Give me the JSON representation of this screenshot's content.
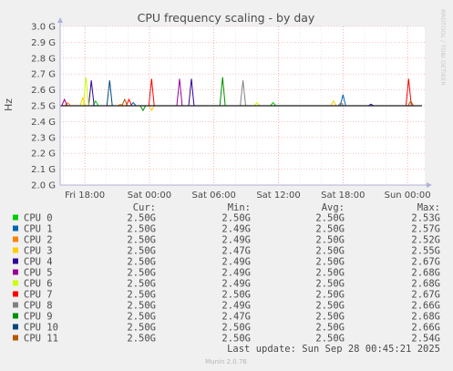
{
  "chart_data": {
    "type": "line",
    "title": "CPU frequency scaling - by day",
    "ylabel": "Hz",
    "y_ticks": [
      "3.0 G",
      "2.9 G",
      "2.8 G",
      "2.7 G",
      "2.6 G",
      "2.5 G",
      "2.4 G",
      "2.3 G",
      "2.2 G",
      "2.1 G",
      "2.0 G"
    ],
    "ylim": [
      2.0,
      3.0
    ],
    "y_unit": "GHz",
    "x_ticks": [
      "Fri 18:00",
      "Sat 00:00",
      "Sat 06:00",
      "Sat 12:00",
      "Sat 18:00",
      "Sun 00:00"
    ],
    "x_tick_hours": [
      0,
      6,
      12,
      18,
      24,
      30
    ],
    "xlim_hours": [
      -2.3,
      31.6
    ],
    "grid": true,
    "baseline": 2.5,
    "columns": [
      "Cur:",
      "Min:",
      "Avg:",
      "Max:"
    ],
    "series": [
      {
        "name": "CPU 0",
        "color": "#00cc00",
        "cur": "2.50G",
        "min": "2.50G",
        "avg": "2.50G",
        "max": "2.53G",
        "spikes": [
          [
            1.0,
            2.53
          ],
          [
            17.5,
            2.52
          ]
        ]
      },
      {
        "name": "CPU 1",
        "color": "#0066b3",
        "cur": "2.50G",
        "min": "2.49G",
        "avg": "2.50G",
        "max": "2.57G",
        "spikes": [
          [
            24.0,
            2.57
          ],
          [
            4.5,
            2.52
          ]
        ]
      },
      {
        "name": "CPU 2",
        "color": "#ff8000",
        "cur": "2.50G",
        "min": "2.49G",
        "avg": "2.50G",
        "max": "2.52G",
        "spikes": [
          [
            -1.6,
            2.52
          ],
          [
            3.3,
            2.51
          ]
        ]
      },
      {
        "name": "CPU 3",
        "color": "#ffcc00",
        "cur": "2.50G",
        "min": "2.47G",
        "avg": "2.50G",
        "max": "2.55G",
        "spikes": [
          [
            -0.2,
            2.55
          ],
          [
            6.2,
            2.47
          ],
          [
            23.1,
            2.53
          ]
        ]
      },
      {
        "name": "CPU 4",
        "color": "#330099",
        "cur": "2.50G",
        "min": "2.49G",
        "avg": "2.50G",
        "max": "2.67G",
        "spikes": [
          [
            9.9,
            2.67
          ],
          [
            0.6,
            2.66
          ],
          [
            26.6,
            2.51
          ]
        ]
      },
      {
        "name": "CPU 5",
        "color": "#990099",
        "cur": "2.50G",
        "min": "2.49G",
        "avg": "2.50G",
        "max": "2.68G",
        "spikes": [
          [
            8.8,
            2.67
          ],
          [
            -1.9,
            2.54
          ]
        ]
      },
      {
        "name": "CPU 6",
        "color": "#ccff00",
        "cur": "2.50G",
        "min": "2.49G",
        "avg": "2.50G",
        "max": "2.68G",
        "spikes": [
          [
            0.1,
            2.68
          ],
          [
            16.0,
            2.52
          ]
        ]
      },
      {
        "name": "CPU 7",
        "color": "#ff0000",
        "cur": "2.50G",
        "min": "2.50G",
        "avg": "2.50G",
        "max": "2.67G",
        "spikes": [
          [
            6.2,
            2.67
          ],
          [
            30.1,
            2.67
          ],
          [
            4.1,
            2.54
          ]
        ]
      },
      {
        "name": "CPU 8",
        "color": "#808080",
        "cur": "2.50G",
        "min": "2.49G",
        "avg": "2.50G",
        "max": "2.66G",
        "spikes": [
          [
            14.7,
            2.66
          ],
          [
            23.8,
            2.52
          ]
        ]
      },
      {
        "name": "CPU 9",
        "color": "#008f00",
        "cur": "2.50G",
        "min": "2.47G",
        "avg": "2.50G",
        "max": "2.68G",
        "spikes": [
          [
            12.8,
            2.68
          ],
          [
            5.4,
            2.47
          ]
        ]
      },
      {
        "name": "CPU 10",
        "color": "#00487d",
        "cur": "2.50G",
        "min": "2.50G",
        "avg": "2.50G",
        "max": "2.66G",
        "spikes": [
          [
            2.3,
            2.66
          ]
        ]
      },
      {
        "name": "CPU 11",
        "color": "#b35a00",
        "cur": "2.50G",
        "min": "2.50G",
        "avg": "2.50G",
        "max": "2.54G",
        "spikes": [
          [
            3.7,
            2.54
          ],
          [
            30.3,
            2.53
          ]
        ]
      }
    ]
  },
  "last_update": "Last update: Sun Sep 28 00:45:21 2025",
  "side_label": "RRDTOOL / TOBI OETIKER",
  "footer": "Munin 2.0.76"
}
